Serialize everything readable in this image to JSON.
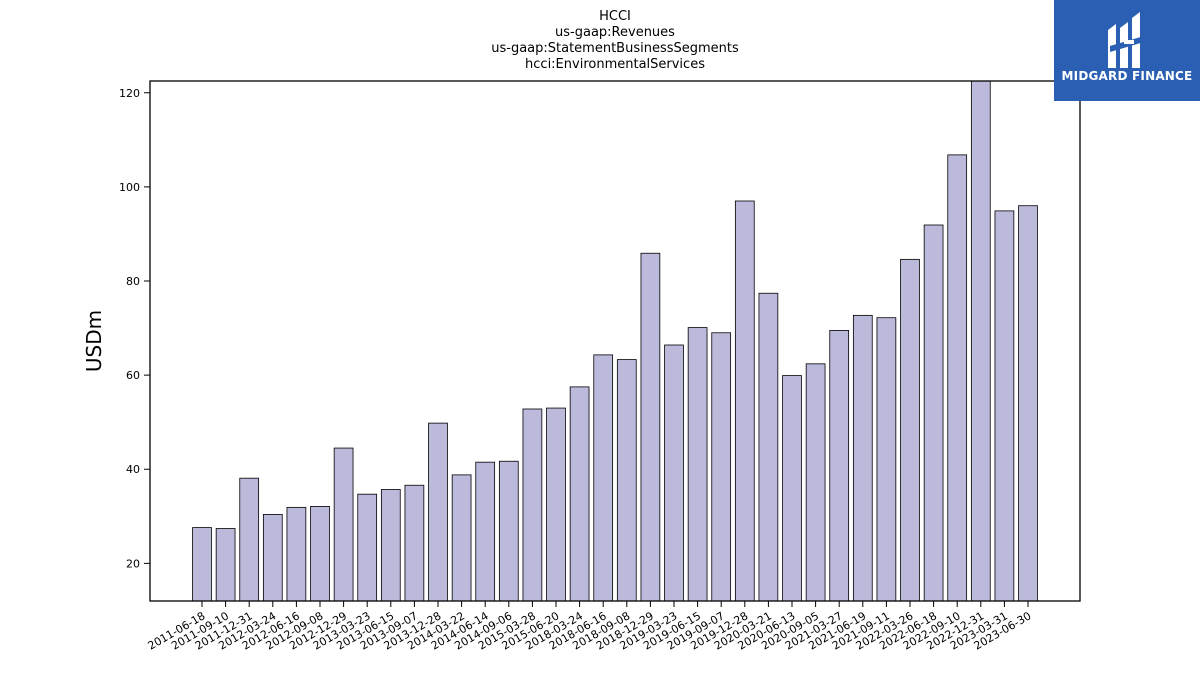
{
  "logo": {
    "text": "MIDGARD FINANCE",
    "icon": "midgard-logo-icon",
    "background": "#2b5fb3"
  },
  "chart_data": {
    "type": "bar",
    "title": [
      "HCCI",
      "us-gaap:Revenues",
      "us-gaap:StatementBusinessSegments",
      "hcci:EnvironmentalServices"
    ],
    "xlabel": "",
    "ylabel": "USDm",
    "ylim": [
      12,
      122.5
    ],
    "yticks": [
      20,
      40,
      60,
      80,
      100,
      120
    ],
    "grid": false,
    "bar_color": "#bcbadb",
    "edge_color": "#000000",
    "categories": [
      "2011-06-18",
      "2011-09-10",
      "2011-12-31",
      "2012-03-24",
      "2012-06-16",
      "2012-09-08",
      "2012-12-29",
      "2013-03-23",
      "2013-06-15",
      "2013-09-07",
      "2013-12-28",
      "2014-03-22",
      "2014-06-14",
      "2014-09-06",
      "2015-03-28",
      "2015-06-20",
      "2018-03-24",
      "2018-06-16",
      "2018-09-08",
      "2018-12-29",
      "2019-03-23",
      "2019-06-15",
      "2019-09-07",
      "2019-12-28",
      "2020-03-21",
      "2020-06-13",
      "2020-09-05",
      "2021-03-27",
      "2021-06-19",
      "2021-09-11",
      "2022-03-26",
      "2022-06-18",
      "2022-09-10",
      "2022-12-31",
      "2023-03-31",
      "2023-06-30"
    ],
    "values": [
      27.6,
      27.4,
      38.1,
      30.4,
      31.9,
      32.1,
      44.5,
      34.7,
      35.7,
      36.6,
      49.8,
      38.8,
      41.5,
      41.7,
      52.8,
      53.0,
      57.5,
      64.3,
      63.3,
      85.9,
      66.4,
      70.1,
      69.0,
      97.0,
      77.4,
      59.9,
      62.4,
      69.5,
      72.7,
      72.2,
      84.6,
      91.9,
      106.8,
      124.0,
      94.9,
      96.0
    ]
  }
}
